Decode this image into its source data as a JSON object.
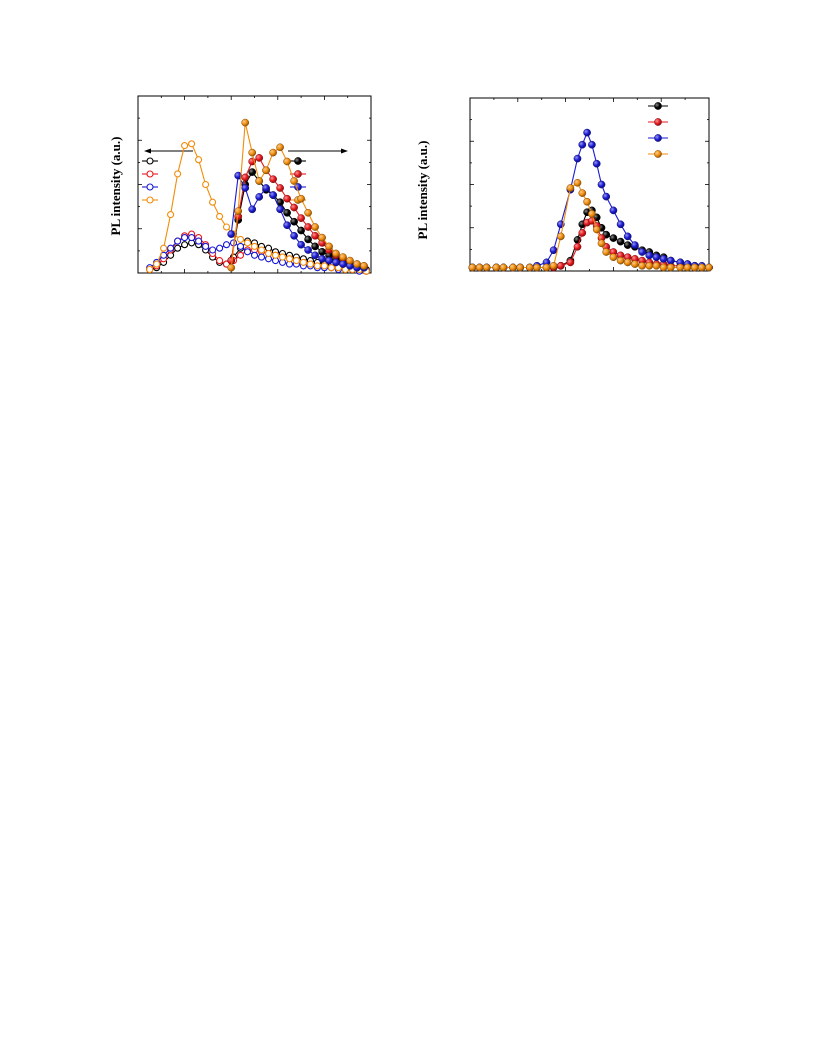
{
  "chart_data": [
    {
      "type": "scatter",
      "ylabel": "PL intensity (a.u.)",
      "xlim": [
        0,
        100
      ],
      "ylim": [
        0,
        100
      ],
      "grid": false,
      "arrows": [
        "left",
        "right"
      ],
      "legend": [
        {
          "name": "",
          "marker": "open",
          "color": "#000000"
        },
        {
          "name": "",
          "marker": "open",
          "color": "#e8181c"
        },
        {
          "name": "",
          "marker": "open",
          "color": "#1a1ad6"
        },
        {
          "name": "",
          "marker": "open",
          "color": "#f28c0a"
        },
        {
          "name": "",
          "marker": "filled",
          "color": "#000000"
        },
        {
          "name": "",
          "marker": "filled",
          "color": "#e8181c"
        },
        {
          "name": "",
          "marker": "filled",
          "color": "#1a1ad6"
        },
        {
          "name": "",
          "marker": "filled",
          "color": "#f28c0a"
        }
      ],
      "series": [
        {
          "marker": "open",
          "color": "#000000",
          "x": [
            5,
            8,
            11,
            14,
            17,
            20,
            23,
            26,
            29,
            32,
            35,
            38,
            41,
            44,
            47,
            50,
            53,
            56,
            59,
            62,
            65,
            68,
            71,
            74,
            77,
            80,
            83,
            86,
            89,
            92,
            95,
            98
          ],
          "y": [
            2,
            3,
            6,
            10,
            14,
            16,
            17,
            16,
            13,
            9,
            6,
            5,
            9,
            14,
            18,
            17,
            15,
            14,
            12,
            11,
            10,
            9,
            8,
            7,
            6,
            5,
            5,
            4,
            4,
            3,
            3,
            2
          ]
        },
        {
          "marker": "open",
          "color": "#e8181c",
          "x": [
            5,
            8,
            11,
            14,
            17,
            20,
            23,
            26,
            29,
            32,
            35,
            38,
            41,
            44,
            47,
            50,
            53,
            56,
            59,
            62,
            65,
            68,
            71,
            74,
            77,
            80,
            83,
            86,
            89,
            92,
            95,
            98
          ],
          "y": [
            2,
            4,
            8,
            13,
            18,
            21,
            22,
            20,
            16,
            11,
            7,
            5,
            7,
            10,
            13,
            13,
            12,
            11,
            10,
            9,
            8,
            7,
            6,
            5,
            4,
            4,
            3,
            3,
            2,
            2,
            2,
            1
          ]
        },
        {
          "marker": "open",
          "color": "#1a1ad6",
          "x": [
            5,
            8,
            11,
            14,
            17,
            20,
            23,
            26,
            29,
            32,
            35,
            38,
            41,
            44,
            47,
            50,
            53,
            56,
            59,
            62,
            65,
            68,
            71,
            74,
            77,
            80,
            83,
            86,
            89,
            92,
            95,
            98
          ],
          "y": [
            3,
            6,
            10,
            14,
            18,
            20,
            20,
            18,
            15,
            13,
            14,
            16,
            17,
            15,
            12,
            10,
            9,
            8,
            7,
            6,
            5,
            5,
            4,
            4,
            3,
            3,
            3,
            2,
            2,
            2,
            1,
            1
          ]
        },
        {
          "marker": "open",
          "color": "#f28c0a",
          "x": [
            5,
            8,
            11,
            14,
            17,
            20,
            23,
            26,
            29,
            32,
            35,
            38,
            41,
            44,
            47,
            50,
            53,
            56,
            59,
            62,
            65,
            68,
            71,
            74,
            77,
            80,
            83,
            86,
            89,
            92,
            95,
            98
          ],
          "y": [
            2,
            5,
            14,
            33,
            56,
            72,
            73,
            64,
            50,
            40,
            32,
            26,
            22,
            19,
            17,
            15,
            13,
            11,
            10,
            9,
            8,
            7,
            6,
            5,
            4,
            4,
            3,
            3,
            2,
            2,
            2,
            1
          ]
        },
        {
          "marker": "filled",
          "color": "#000000",
          "x": [
            40,
            43,
            46,
            49,
            52,
            55,
            58,
            61,
            64,
            67,
            70,
            73,
            76,
            79,
            82,
            85,
            88,
            91,
            94,
            97
          ],
          "y": [
            7,
            30,
            50,
            57,
            52,
            47,
            44,
            40,
            34,
            29,
            24,
            19,
            15,
            12,
            10,
            8,
            6,
            5,
            4,
            3
          ]
        },
        {
          "marker": "filled",
          "color": "#e8181c",
          "x": [
            40,
            43,
            46,
            49,
            52,
            55,
            58,
            61,
            64,
            67,
            70,
            73,
            76,
            79,
            82,
            85,
            88,
            91,
            94,
            97
          ],
          "y": [
            7,
            32,
            54,
            63,
            65,
            58,
            53,
            48,
            42,
            37,
            31,
            26,
            21,
            17,
            13,
            10,
            8,
            6,
            5,
            4
          ]
        },
        {
          "marker": "filled",
          "color": "#1a1ad6",
          "x": [
            40,
            43,
            46,
            49,
            52,
            55,
            58,
            61,
            64,
            67,
            70,
            73,
            76,
            79,
            82,
            85,
            88,
            91,
            94,
            97
          ],
          "y": [
            22,
            55,
            48,
            36,
            43,
            48,
            44,
            36,
            27,
            21,
            16,
            13,
            10,
            8,
            7,
            6,
            5,
            4,
            3,
            3
          ]
        },
        {
          "marker": "filled",
          "color": "#f28c0a",
          "x": [
            40,
            43,
            46,
            49,
            52,
            55,
            58,
            61,
            64,
            67,
            70,
            73,
            76,
            79,
            82,
            85,
            88,
            91,
            94,
            97
          ],
          "y": [
            3,
            35,
            85,
            68,
            52,
            58,
            68,
            71,
            63,
            52,
            42,
            34,
            26,
            20,
            15,
            11,
            9,
            7,
            5,
            4
          ]
        }
      ]
    },
    {
      "type": "scatter",
      "ylabel": "PL intensity (a.u.)",
      "xlim": [
        0,
        100
      ],
      "ylim": [
        0,
        100
      ],
      "grid": false,
      "legend": [
        {
          "name": "",
          "color": "#000000"
        },
        {
          "name": "",
          "color": "#e8181c"
        },
        {
          "name": "",
          "color": "#1a1ad6"
        },
        {
          "name": "",
          "color": "#f28c0a"
        }
      ],
      "series": [
        {
          "color": "#000000",
          "x": [
            1,
            4,
            7,
            11,
            14,
            18,
            21,
            25,
            28,
            32,
            35,
            38,
            42,
            45,
            47,
            49,
            51,
            53,
            55,
            57,
            60,
            63,
            66,
            69,
            72,
            75,
            78,
            81,
            84,
            88,
            91,
            94,
            97,
            100
          ],
          "y": [
            2,
            2,
            2,
            2,
            2,
            2,
            2,
            2,
            2,
            2,
            2,
            3,
            6,
            18,
            27,
            34,
            35,
            31,
            25,
            21,
            19,
            17,
            15,
            14,
            12,
            11,
            9,
            8,
            6,
            5,
            4,
            3,
            2,
            2
          ]
        },
        {
          "color": "#e8181c",
          "x": [
            1,
            4,
            7,
            11,
            14,
            18,
            21,
            25,
            28,
            32,
            35,
            38,
            42,
            45,
            47,
            49,
            51,
            53,
            55,
            57,
            60,
            63,
            66,
            69,
            72,
            75,
            78,
            81,
            84,
            88,
            91,
            94,
            97,
            100
          ],
          "y": [
            2,
            2,
            2,
            2,
            2,
            2,
            2,
            2,
            2,
            2,
            2,
            3,
            5,
            14,
            22,
            28,
            29,
            26,
            19,
            14,
            11,
            9,
            8,
            7,
            6,
            5,
            4,
            4,
            3,
            3,
            3,
            2,
            2,
            2
          ]
        },
        {
          "color": "#1a1ad6",
          "x": [
            1,
            4,
            7,
            11,
            14,
            18,
            21,
            25,
            28,
            32,
            35,
            38,
            42,
            45,
            47,
            49,
            51,
            53,
            55,
            57,
            60,
            63,
            66,
            69,
            72,
            75,
            78,
            81,
            84,
            88,
            91,
            94,
            97,
            100
          ],
          "y": [
            2,
            2,
            2,
            2,
            2,
            2,
            2,
            2,
            3,
            5,
            12,
            27,
            47,
            65,
            73,
            80,
            73,
            62,
            50,
            43,
            35,
            27,
            20,
            15,
            11,
            9,
            8,
            7,
            6,
            5,
            4,
            3,
            3,
            2
          ]
        },
        {
          "color": "#f28c0a",
          "x": [
            1,
            4,
            7,
            11,
            14,
            18,
            21,
            25,
            28,
            32,
            35,
            38,
            42,
            45,
            47,
            49,
            51,
            53,
            55,
            57,
            60,
            63,
            66,
            69,
            72,
            75,
            78,
            81,
            84,
            88,
            91,
            94,
            97,
            100
          ],
          "y": [
            2,
            2,
            2,
            2,
            2,
            2,
            2,
            2,
            2,
            2,
            3,
            20,
            48,
            51,
            45,
            40,
            33,
            24,
            16,
            11,
            8,
            6,
            5,
            4,
            3,
            3,
            3,
            2,
            2,
            2,
            2,
            2,
            2,
            2
          ]
        }
      ]
    }
  ]
}
